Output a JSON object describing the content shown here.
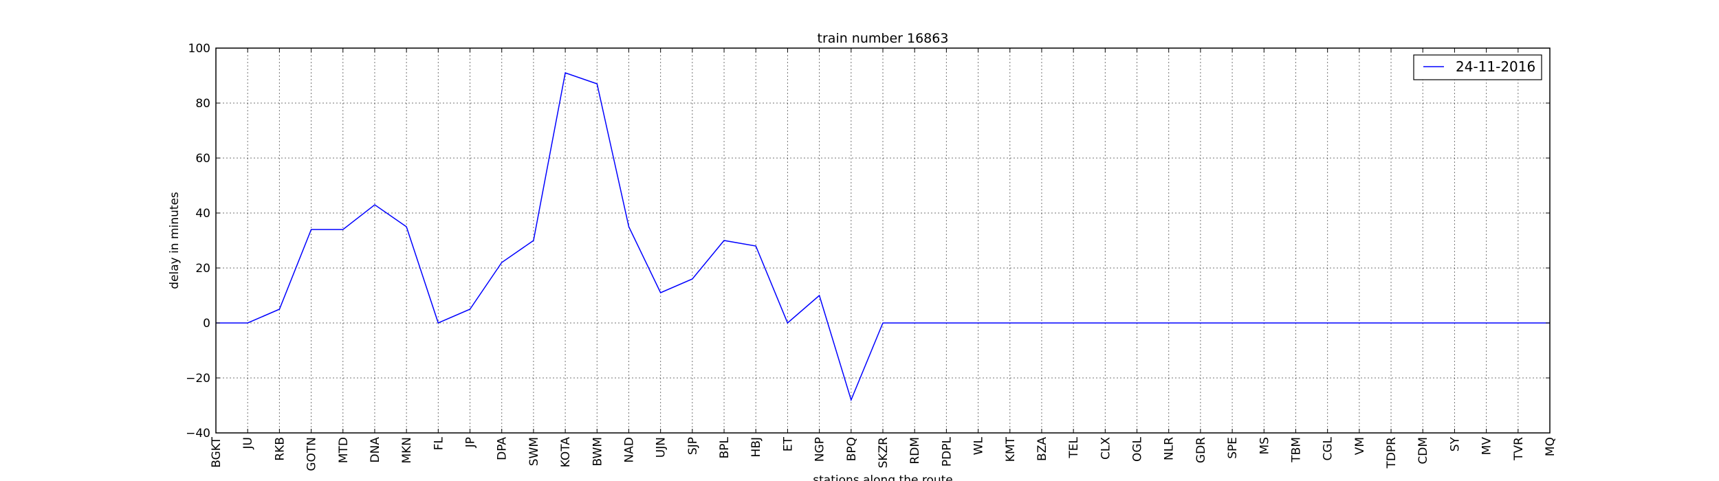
{
  "chart_data": {
    "type": "line",
    "title": "train number 16863",
    "xlabel": "stations along the route",
    "ylabel": "delay in minutes",
    "ylim": [
      -40,
      100
    ],
    "yticks": [
      -40,
      -20,
      0,
      20,
      40,
      60,
      80,
      100
    ],
    "ytick_labels": [
      "−40",
      "−20",
      "0",
      "20",
      "40",
      "60",
      "80",
      "100"
    ],
    "grid": true,
    "legend_position": "top-right",
    "categories": [
      "BGKT",
      "JU",
      "RKB",
      "GOTN",
      "MTD",
      "DNA",
      "MKN",
      "FL",
      "JP",
      "DPA",
      "SWM",
      "KOTA",
      "BWM",
      "NAD",
      "UJN",
      "SJP",
      "BPL",
      "HBJ",
      "ET",
      "NGP",
      "BPQ",
      "SKZR",
      "RDM",
      "PDPL",
      "WL",
      "KMT",
      "BZA",
      "TEL",
      "CLX",
      "OGL",
      "NLR",
      "GDR",
      "SPE",
      "MS",
      "TBM",
      "CGL",
      "VM",
      "TDPR",
      "CDM",
      "SY",
      "MV",
      "TVR",
      "MQ"
    ],
    "series": [
      {
        "name": "24-11-2016",
        "color": "#0000ff",
        "values": [
          0,
          0,
          5,
          34,
          34,
          43,
          35,
          0,
          5,
          22,
          30,
          91,
          87,
          35,
          11,
          16,
          30,
          28,
          0,
          10,
          -28,
          0,
          0,
          0,
          0,
          0,
          0,
          0,
          0,
          0,
          0,
          0,
          0,
          0,
          0,
          0,
          0,
          0,
          0,
          0,
          0,
          0,
          0
        ]
      }
    ]
  }
}
